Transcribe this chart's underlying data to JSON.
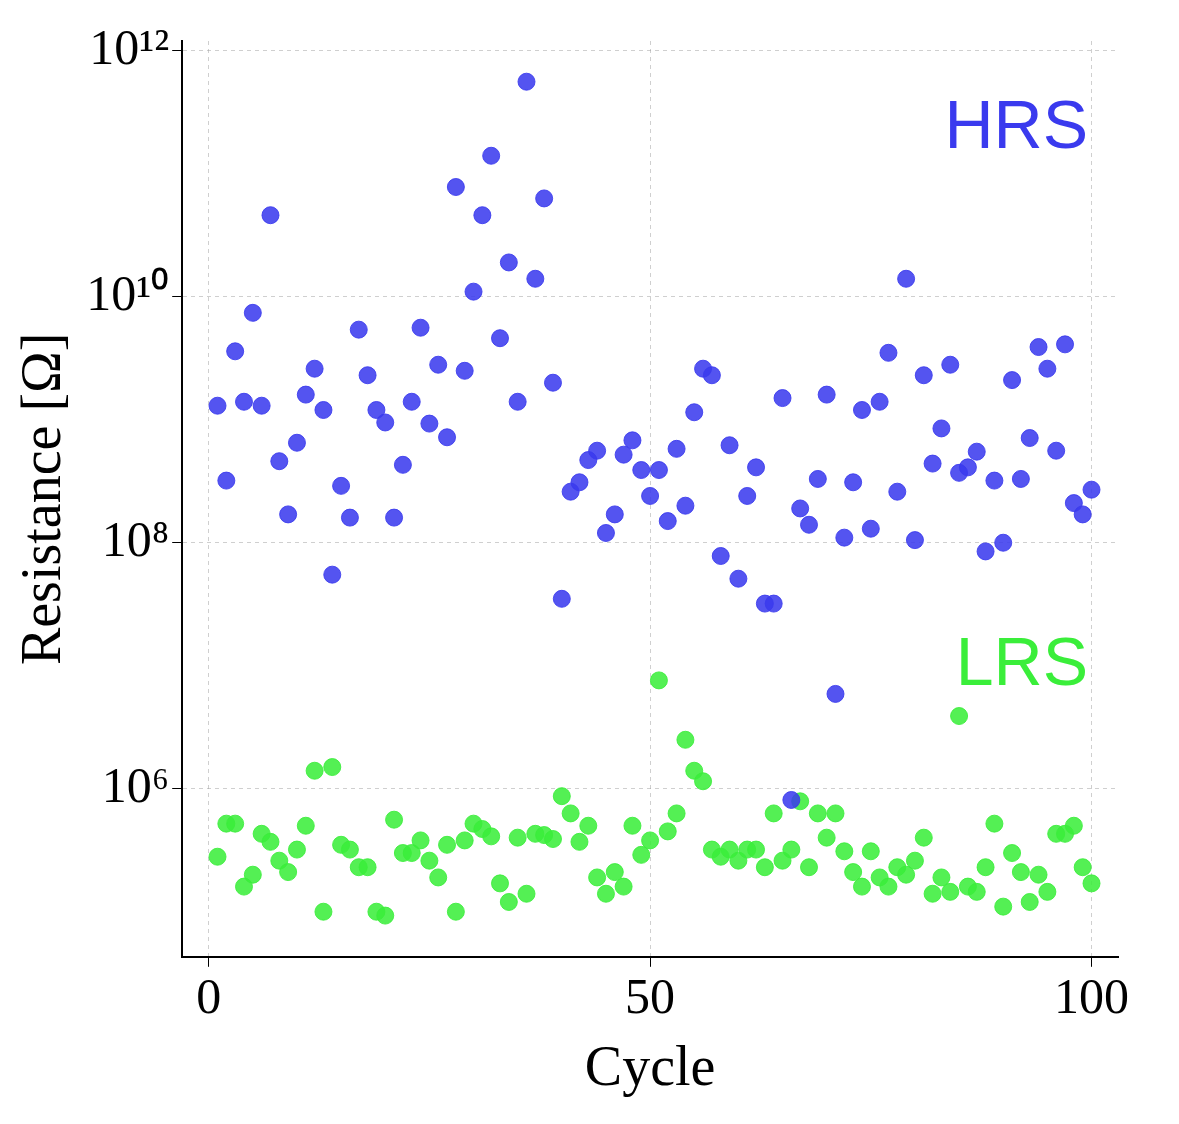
{
  "chart_data": {
    "type": "scatter",
    "xlabel": "Cycle",
    "ylabel": "Resistance [Ω]",
    "log": "y",
    "grid": true,
    "marker": "circle",
    "legend": false,
    "x": [
      1,
      2,
      3,
      4,
      5,
      6,
      7,
      8,
      9,
      10,
      11,
      12,
      13,
      14,
      15,
      16,
      17,
      18,
      19,
      20,
      21,
      22,
      23,
      24,
      25,
      26,
      27,
      28,
      29,
      30,
      31,
      32,
      33,
      34,
      35,
      36,
      37,
      38,
      39,
      40,
      41,
      42,
      43,
      44,
      45,
      46,
      47,
      48,
      49,
      50,
      51,
      52,
      53,
      54,
      55,
      56,
      57,
      58,
      59,
      60,
      61,
      62,
      63,
      64,
      65,
      66,
      67,
      68,
      69,
      70,
      71,
      72,
      73,
      74,
      75,
      76,
      77,
      78,
      79,
      80,
      81,
      82,
      83,
      84,
      85,
      86,
      87,
      88,
      89,
      90,
      91,
      92,
      93,
      94,
      95,
      96,
      97,
      98,
      99,
      100
    ],
    "xlim": [
      -3,
      103
    ],
    "xticks": [
      0,
      50,
      100
    ],
    "ylim": [
      43000.0,
      1200000000000.0
    ],
    "yticks": [
      {
        "value": 1000000.0,
        "label": "10⁶"
      },
      {
        "value": 100000000.0,
        "label": "10⁸"
      },
      {
        "value": 10000000000.0,
        "label": "10¹⁰"
      },
      {
        "value": 1000000000000.0,
        "label": "10¹²"
      }
    ],
    "series": [
      {
        "name": "HRS",
        "color": "#3a3aee",
        "values": [
          1300000000.0,
          320000000.0,
          3600000000.0,
          1400000000.0,
          7400000000.0,
          1300000000.0,
          46000000000.0,
          460000000.0,
          170000000.0,
          650000000.0,
          1600000000.0,
          2600000000.0,
          1200000000.0,
          55000000.0,
          290000000.0,
          160000000.0,
          5400000000.0,
          2300000000.0,
          1200000000.0,
          950000000.0,
          160000000.0,
          430000000.0,
          1400000000.0,
          5600000000.0,
          930000000.0,
          2800000000.0,
          720000000.0,
          78000000000.0,
          2500000000.0,
          11000000000.0,
          46000000000.0,
          140000000000.0,
          4600000000.0,
          19000000000.0,
          1400000000.0,
          560000000000.0,
          14000000000.0,
          63000000000.0,
          2000000000.0,
          35000000.0,
          260000000.0,
          310000000.0,
          470000000.0,
          560000000.0,
          120000000.0,
          170000000.0,
          520000000.0,
          680000000.0,
          390000000.0,
          240000000.0,
          390000000.0,
          150000000.0,
          580000000.0,
          200000000.0,
          1150000000.0,
          2600000000.0,
          2300000000.0,
          78000000.0,
          620000000.0,
          51000000.0,
          240000000.0,
          410000000.0,
          32000000.0,
          32000000.0,
          1500000000.0,
          810000.0,
          190000000.0,
          140000000.0,
          330000000.0,
          1600000000.0,
          5900000.0,
          110000000.0,
          310000000.0,
          1200000000.0,
          130000000.0,
          1400000000.0,
          3500000000.0,
          260000000.0,
          14000000000.0,
          105000000.0,
          2300000000.0,
          440000000.0,
          850000000.0,
          2800000000.0,
          370000000.0,
          410000000.0,
          550000000.0,
          85000000.0,
          320000000.0,
          100000000.0,
          2100000000.0,
          330000000.0,
          710000000.0,
          3900000000.0,
          2600000000.0,
          560000000.0,
          4100000000.0,
          210000000.0,
          170000000.0,
          270000000.0
        ]
      },
      {
        "name": "LRS",
        "color": "#3aee3a",
        "values": [
          280000.0,
          520000.0,
          520000.0,
          160000.0,
          200000.0,
          430000.0,
          370000.0,
          260000.0,
          210000.0,
          320000.0,
          500000.0,
          1400000.0,
          100000.0,
          1500000.0,
          350000.0,
          320000.0,
          230000.0,
          230000.0,
          100000.0,
          93000.0,
          560000.0,
          300000.0,
          300000.0,
          380000.0,
          260000.0,
          190000.0,
          350000.0,
          100000.0,
          380000.0,
          520000.0,
          470000.0,
          410000.0,
          170000.0,
          120000.0,
          400000.0,
          140000.0,
          430000.0,
          420000.0,
          390000.0,
          870000.0,
          630000.0,
          370000.0,
          500000.0,
          190000.0,
          140000.0,
          210000.0,
          160000.0,
          500000.0,
          290000.0,
          380000.0,
          7600000.0,
          450000.0,
          630000.0,
          2500000.0,
          1400000.0,
          1150000.0,
          320000.0,
          280000.0,
          320000.0,
          260000.0,
          320000.0,
          320000.0,
          230000.0,
          630000.0,
          260000.0,
          320000.0,
          790000.0,
          230000.0,
          630000.0,
          400000.0,
          630000.0,
          310000.0,
          210000.0,
          160000.0,
          310000.0,
          190000.0,
          160000.0,
          230000.0,
          200000.0,
          260000.0,
          400000.0,
          140000.0,
          190000.0,
          145000.0,
          3900000.0,
          160000.0,
          145000.0,
          230000.0,
          520000.0,
          110000.0,
          300000.0,
          210000.0,
          120000.0,
          200000.0,
          145000.0,
          430000.0,
          430000.0,
          500000.0,
          230000.0,
          170000.0
        ]
      }
    ]
  }
}
